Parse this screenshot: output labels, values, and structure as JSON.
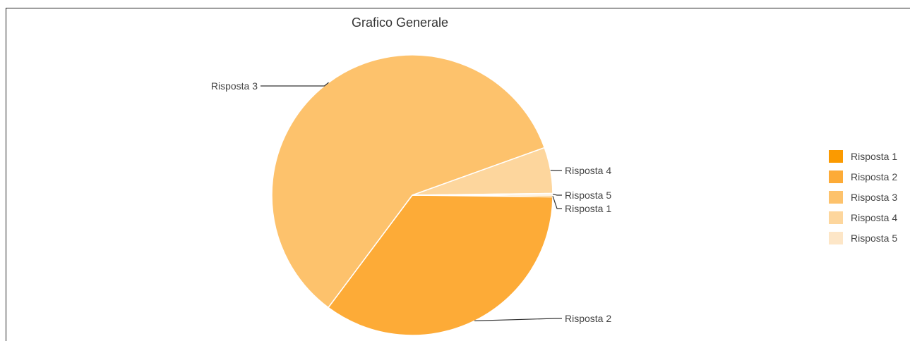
{
  "chart_data": {
    "type": "pie",
    "title": "Grafico Generale",
    "legend_position": "right",
    "slices": [
      {
        "label": "Risposta 1",
        "value": 0.2,
        "color": "#fb9a00"
      },
      {
        "label": "Risposta 2",
        "value": 35.0,
        "color": "#fdab37"
      },
      {
        "label": "Risposta 3",
        "value": 59.3,
        "color": "#fdc26c"
      },
      {
        "label": "Risposta 4",
        "value": 5.3,
        "color": "#fdd69d"
      },
      {
        "label": "Risposta 5",
        "value": 0.2,
        "color": "#fde6c7"
      }
    ]
  }
}
